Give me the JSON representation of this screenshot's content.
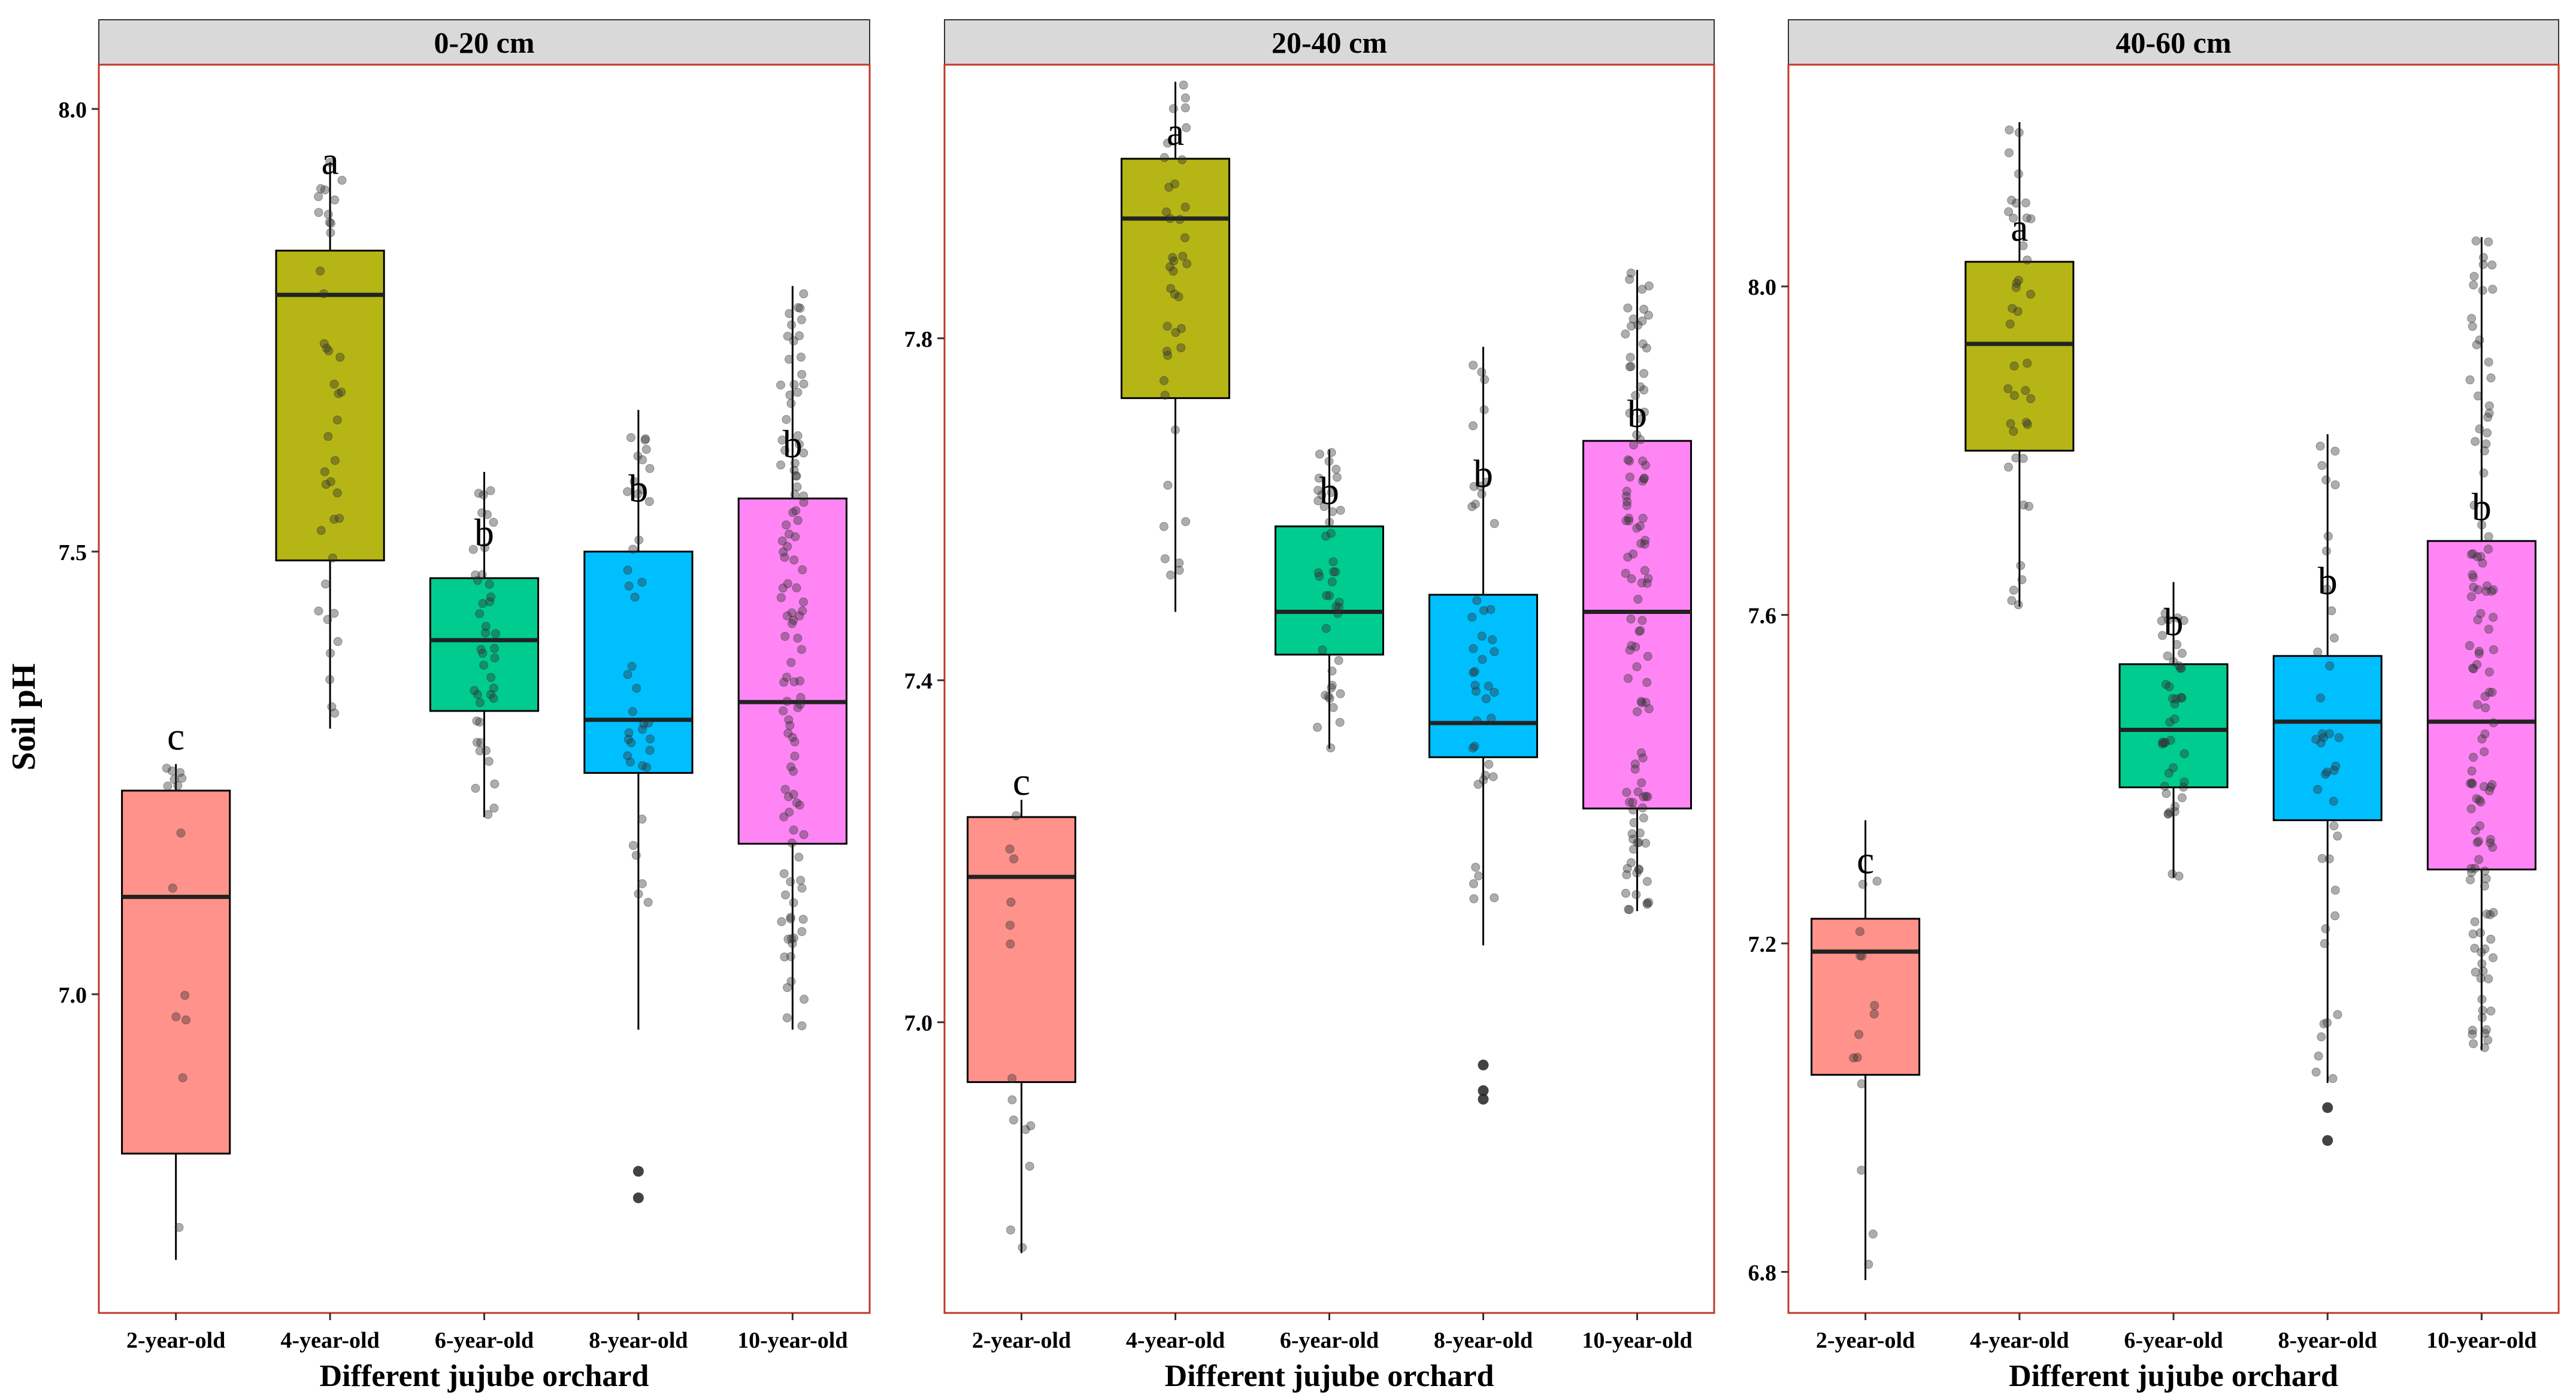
{
  "figure": {
    "ylabel": "Soil pH",
    "xlabel": "Different jujube orchard"
  },
  "colors": {
    "strip_fill": "#d9d9d9",
    "panel_border": "#c0392b",
    "point": "#333333",
    "groups": [
      "#ff928a",
      "#b5b515",
      "#00cc90",
      "#00bfff",
      "#ff85f5"
    ]
  },
  "chart_data": [
    {
      "type": "boxplot",
      "title": "0-20 cm",
      "xlabel": "Different jujube orchard",
      "ylabel": "Soil pH",
      "ylim": [
        6.64,
        8.05
      ],
      "yticks": [
        7.0,
        7.5,
        8.0
      ],
      "ytick_labels": [
        "7.0",
        "7.5",
        "8.0"
      ],
      "grid": false,
      "categories": [
        "2-year-old",
        "4-year-old",
        "6-year-old",
        "8-year-old",
        "10-year-old"
      ],
      "boxes": [
        {
          "min": 6.7,
          "q1": 6.82,
          "median": 7.11,
          "q3": 7.23,
          "max": 7.26,
          "outliers": []
        },
        {
          "min": 7.3,
          "q1": 7.49,
          "median": 7.79,
          "q3": 7.84,
          "max": 7.94,
          "outliers": []
        },
        {
          "min": 7.2,
          "q1": 7.32,
          "median": 7.4,
          "q3": 7.47,
          "max": 7.59,
          "outliers": []
        },
        {
          "min": 6.96,
          "q1": 7.25,
          "median": 7.31,
          "q3": 7.5,
          "max": 7.66,
          "outliers": [
            6.77,
            6.8
          ]
        },
        {
          "min": 6.96,
          "q1": 7.17,
          "median": 7.33,
          "q3": 7.56,
          "max": 7.8,
          "outliers": []
        }
      ],
      "letters": [
        {
          "text": "c",
          "y": 7.29
        },
        {
          "text": "a",
          "y": 7.94
        },
        {
          "text": "b",
          "y": 7.52
        },
        {
          "text": "b",
          "y": 7.57
        },
        {
          "text": "b",
          "y": 7.62
        }
      ],
      "point_counts": [
        14,
        40,
        42,
        40,
        110
      ]
    },
    {
      "type": "boxplot",
      "title": "20-40 cm",
      "xlabel": "Different jujube orchard",
      "ylabel": "",
      "ylim": [
        6.66,
        8.12
      ],
      "yticks": [
        7.0,
        7.4,
        7.8
      ],
      "ytick_labels": [
        "7.0",
        "7.4",
        "7.8"
      ],
      "grid": false,
      "categories": [
        "2-year-old",
        "4-year-old",
        "6-year-old",
        "8-year-old",
        "10-year-old"
      ],
      "boxes": [
        {
          "min": 6.73,
          "q1": 6.93,
          "median": 7.17,
          "q3": 7.24,
          "max": 7.26,
          "outliers": []
        },
        {
          "min": 7.48,
          "q1": 7.73,
          "median": 7.94,
          "q3": 8.01,
          "max": 8.1,
          "outliers": []
        },
        {
          "min": 7.32,
          "q1": 7.43,
          "median": 7.48,
          "q3": 7.58,
          "max": 7.67,
          "outliers": []
        },
        {
          "min": 7.09,
          "q1": 7.31,
          "median": 7.35,
          "q3": 7.5,
          "max": 7.79,
          "outliers": [
            6.91,
            6.92,
            6.95
          ]
        },
        {
          "min": 7.13,
          "q1": 7.25,
          "median": 7.48,
          "q3": 7.68,
          "max": 7.88,
          "outliers": []
        }
      ],
      "letters": [
        {
          "text": "c",
          "y": 7.28
        },
        {
          "text": "a",
          "y": 8.04
        },
        {
          "text": "b",
          "y": 7.62
        },
        {
          "text": "b",
          "y": 7.64
        },
        {
          "text": "b",
          "y": 7.71
        }
      ],
      "point_counts": [
        14,
        40,
        42,
        42,
        110
      ]
    },
    {
      "type": "boxplot",
      "title": "40-60 cm",
      "xlabel": "Different jujube orchard",
      "ylabel": "",
      "ylim": [
        6.75,
        8.27
      ],
      "yticks": [
        6.8,
        7.2,
        7.6,
        8.0
      ],
      "ytick_labels": [
        "6.8",
        "7.2",
        "7.6",
        "8.0"
      ],
      "grid": false,
      "categories": [
        "2-year-old",
        "4-year-old",
        "6-year-old",
        "8-year-old",
        "10-year-old"
      ],
      "boxes": [
        {
          "min": 6.79,
          "q1": 7.04,
          "median": 7.19,
          "q3": 7.23,
          "max": 7.35,
          "outliers": []
        },
        {
          "min": 7.61,
          "q1": 7.8,
          "median": 7.93,
          "q3": 8.03,
          "max": 8.2,
          "outliers": []
        },
        {
          "min": 7.28,
          "q1": 7.39,
          "median": 7.46,
          "q3": 7.54,
          "max": 7.64,
          "outliers": []
        },
        {
          "min": 7.03,
          "q1": 7.35,
          "median": 7.47,
          "q3": 7.55,
          "max": 7.82,
          "outliers": [
            6.96,
            7.0
          ]
        },
        {
          "min": 7.07,
          "q1": 7.29,
          "median": 7.47,
          "q3": 7.69,
          "max": 8.06,
          "outliers": []
        }
      ],
      "letters": [
        {
          "text": "c",
          "y": 7.3
        },
        {
          "text": "a",
          "y": 8.07
        },
        {
          "text": "b",
          "y": 7.59
        },
        {
          "text": "b",
          "y": 7.64
        },
        {
          "text": "b",
          "y": 7.73
        }
      ],
      "point_counts": [
        14,
        40,
        42,
        40,
        120
      ]
    }
  ]
}
